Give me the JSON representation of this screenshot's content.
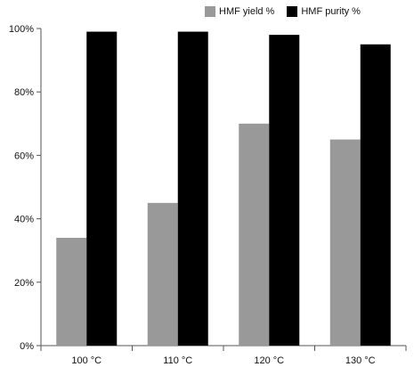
{
  "chart_data": {
    "type": "bar",
    "title": "",
    "xlabel": "",
    "ylabel": "",
    "categories": [
      "100 °C",
      "110 °C",
      "120 °C",
      "130 °C"
    ],
    "series": [
      {
        "name": "HMF yield %",
        "color": "#999999",
        "values": [
          34,
          45,
          70,
          65
        ]
      },
      {
        "name": "HMF purity %",
        "color": "#000000",
        "values": [
          99,
          99,
          98,
          95
        ]
      }
    ],
    "ylim": [
      0,
      100
    ],
    "yticks": [
      "0%",
      "20%",
      "40%",
      "60%",
      "80%",
      "100%"
    ],
    "grid": false,
    "legend_position": "top-right"
  }
}
